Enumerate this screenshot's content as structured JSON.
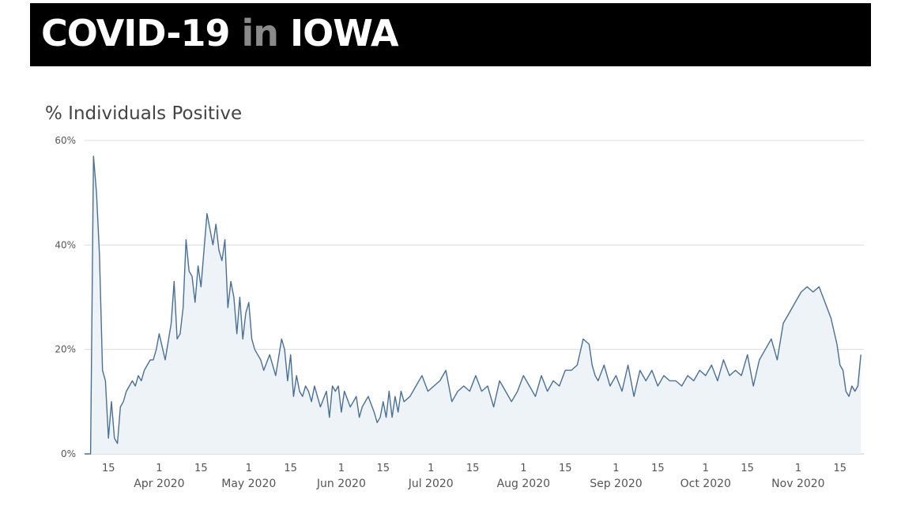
{
  "banner": {
    "title_part1": "COVID-19 ",
    "title_part2": "in",
    "title_part3": " IOWA",
    "background": "#000000"
  },
  "chart_data": {
    "type": "area",
    "title": "% Individuals Positive",
    "xlabel": "",
    "ylabel": "",
    "ylim": [
      0,
      60
    ],
    "yticks": [
      0,
      20,
      40,
      60
    ],
    "ytick_labels": [
      "0%",
      "20%",
      "40%",
      "60%"
    ],
    "xlim": [
      "2020-03-07",
      "2020-11-23"
    ],
    "xticks": [
      {
        "date": "2020-03-15",
        "day": "15",
        "month": ""
      },
      {
        "date": "2020-04-01",
        "day": "1",
        "month": "Apr 2020"
      },
      {
        "date": "2020-04-15",
        "day": "15",
        "month": ""
      },
      {
        "date": "2020-05-01",
        "day": "1",
        "month": "May 2020"
      },
      {
        "date": "2020-05-15",
        "day": "15",
        "month": ""
      },
      {
        "date": "2020-06-01",
        "day": "1",
        "month": "Jun 2020"
      },
      {
        "date": "2020-06-15",
        "day": "15",
        "month": ""
      },
      {
        "date": "2020-07-01",
        "day": "1",
        "month": "Jul 2020"
      },
      {
        "date": "2020-07-15",
        "day": "15",
        "month": ""
      },
      {
        "date": "2020-08-01",
        "day": "1",
        "month": "Aug 2020"
      },
      {
        "date": "2020-08-15",
        "day": "15",
        "month": ""
      },
      {
        "date": "2020-09-01",
        "day": "1",
        "month": "Sep 2020"
      },
      {
        "date": "2020-09-15",
        "day": "15",
        "month": ""
      },
      {
        "date": "2020-10-01",
        "day": "1",
        "month": "Oct 2020"
      },
      {
        "date": "2020-10-15",
        "day": "15",
        "month": ""
      },
      {
        "date": "2020-11-01",
        "day": "1",
        "month": "Nov 2020"
      },
      {
        "date": "2020-11-15",
        "day": "15",
        "month": ""
      }
    ],
    "grid": true,
    "line_color": "#4a6f96",
    "fill_color": "#eef3f8",
    "series": [
      {
        "x": [
          "2020-03-07",
          "2020-03-09",
          "2020-03-10",
          "2020-03-11",
          "2020-03-12",
          "2020-03-13",
          "2020-03-14",
          "2020-03-15",
          "2020-03-16",
          "2020-03-17",
          "2020-03-18",
          "2020-03-19",
          "2020-03-20",
          "2020-03-21",
          "2020-03-22",
          "2020-03-23",
          "2020-03-24",
          "2020-03-25",
          "2020-03-26",
          "2020-03-27",
          "2020-03-28",
          "2020-03-29",
          "2020-03-30",
          "2020-03-31",
          "2020-04-01",
          "2020-04-03",
          "2020-04-05",
          "2020-04-06",
          "2020-04-07",
          "2020-04-08",
          "2020-04-09",
          "2020-04-10",
          "2020-04-11",
          "2020-04-12",
          "2020-04-13",
          "2020-04-14",
          "2020-04-15",
          "2020-04-17",
          "2020-04-18",
          "2020-04-19",
          "2020-04-20",
          "2020-04-21",
          "2020-04-22",
          "2020-04-23",
          "2020-04-24",
          "2020-04-25",
          "2020-04-26",
          "2020-04-27",
          "2020-04-28",
          "2020-04-29",
          "2020-04-30",
          "2020-05-01",
          "2020-05-02",
          "2020-05-03",
          "2020-05-04",
          "2020-05-05",
          "2020-05-06",
          "2020-05-08",
          "2020-05-10",
          "2020-05-12",
          "2020-05-13",
          "2020-05-14",
          "2020-05-15",
          "2020-05-16",
          "2020-05-17",
          "2020-05-18",
          "2020-05-19",
          "2020-05-20",
          "2020-05-21",
          "2020-05-22",
          "2020-05-23",
          "2020-05-25",
          "2020-05-27",
          "2020-05-28",
          "2020-05-29",
          "2020-05-30",
          "2020-05-31",
          "2020-06-01",
          "2020-06-02",
          "2020-06-04",
          "2020-06-06",
          "2020-06-07",
          "2020-06-08",
          "2020-06-10",
          "2020-06-12",
          "2020-06-13",
          "2020-06-14",
          "2020-06-15",
          "2020-06-16",
          "2020-06-17",
          "2020-06-18",
          "2020-06-19",
          "2020-06-20",
          "2020-06-21",
          "2020-06-22",
          "2020-06-24",
          "2020-06-26",
          "2020-06-28",
          "2020-06-30",
          "2020-07-02",
          "2020-07-04",
          "2020-07-06",
          "2020-07-08",
          "2020-07-10",
          "2020-07-12",
          "2020-07-14",
          "2020-07-16",
          "2020-07-18",
          "2020-07-20",
          "2020-07-22",
          "2020-07-24",
          "2020-07-26",
          "2020-07-28",
          "2020-07-30",
          "2020-08-01",
          "2020-08-03",
          "2020-08-05",
          "2020-08-07",
          "2020-08-09",
          "2020-08-11",
          "2020-08-13",
          "2020-08-15",
          "2020-08-17",
          "2020-08-19",
          "2020-08-21",
          "2020-08-23",
          "2020-08-24",
          "2020-08-25",
          "2020-08-26",
          "2020-08-28",
          "2020-08-30",
          "2020-09-01",
          "2020-09-03",
          "2020-09-05",
          "2020-09-07",
          "2020-09-09",
          "2020-09-11",
          "2020-09-13",
          "2020-09-15",
          "2020-09-17",
          "2020-09-19",
          "2020-09-21",
          "2020-09-23",
          "2020-09-25",
          "2020-09-27",
          "2020-09-29",
          "2020-10-01",
          "2020-10-03",
          "2020-10-05",
          "2020-10-07",
          "2020-10-09",
          "2020-10-11",
          "2020-10-13",
          "2020-10-15",
          "2020-10-17",
          "2020-10-19",
          "2020-10-21",
          "2020-10-23",
          "2020-10-25",
          "2020-10-27",
          "2020-10-29",
          "2020-10-31",
          "2020-11-02",
          "2020-11-04",
          "2020-11-06",
          "2020-11-08",
          "2020-11-10",
          "2020-11-12",
          "2020-11-14",
          "2020-11-15",
          "2020-11-16",
          "2020-11-17",
          "2020-11-18",
          "2020-11-19",
          "2020-11-20",
          "2020-11-21",
          "2020-11-22"
        ],
        "y": [
          0,
          0,
          57,
          50,
          38,
          16,
          14,
          3,
          10,
          3,
          2,
          9,
          10,
          12,
          13,
          14,
          13,
          15,
          14,
          16,
          17,
          18,
          18,
          20,
          23,
          18,
          25,
          33,
          22,
          23,
          28,
          41,
          35,
          34,
          29,
          36,
          32,
          46,
          43,
          40,
          44,
          39,
          37,
          41,
          28,
          33,
          30,
          23,
          30,
          22,
          27,
          29,
          22,
          20,
          19,
          18,
          16,
          19,
          15,
          22,
          20,
          14,
          19,
          11,
          15,
          12,
          11,
          13,
          12,
          10,
          13,
          9,
          12,
          7,
          13,
          12,
          13,
          8,
          12,
          9,
          11,
          7,
          9,
          11,
          8,
          6,
          7,
          10,
          7,
          12,
          7,
          11,
          8,
          12,
          10,
          11,
          13,
          15,
          12,
          13,
          14,
          16,
          10,
          12,
          13,
          12,
          15,
          12,
          13,
          9,
          14,
          12,
          10,
          12,
          15,
          13,
          11,
          15,
          12,
          14,
          13,
          16,
          16,
          17,
          22,
          21,
          17,
          15,
          14,
          17,
          13,
          15,
          12,
          17,
          11,
          16,
          14,
          16,
          13,
          15,
          14,
          14,
          13,
          15,
          14,
          16,
          15,
          17,
          14,
          18,
          15,
          16,
          15,
          19,
          13,
          18,
          20,
          22,
          18,
          25,
          27,
          29,
          31,
          32,
          31,
          32,
          29,
          26,
          21,
          17,
          16,
          12,
          11,
          13,
          12,
          13,
          19
        ]
      }
    ]
  }
}
